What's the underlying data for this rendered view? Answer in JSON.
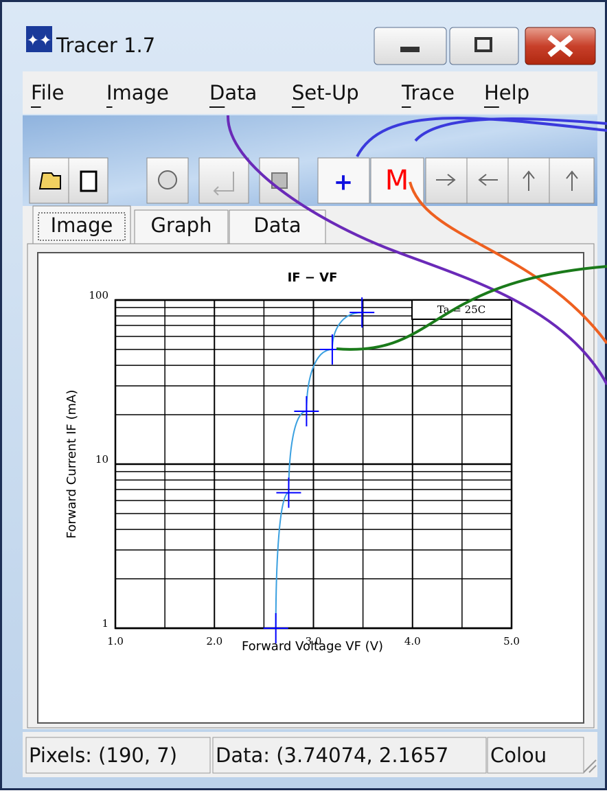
{
  "window": {
    "title": "Tracer 1.7"
  },
  "menu": [
    "File",
    "Image",
    "Data",
    "Set-Up",
    "Trace",
    "Help"
  ],
  "toolbar": {
    "point_tool": "+",
    "measure_tool": "M"
  },
  "tabs": [
    "Image",
    "Graph",
    "Data"
  ],
  "graph": {
    "title": "IF − VF",
    "x_label": "Forward Voltage  VF  (V)",
    "y_label": "Forward Current  IF  (mA)",
    "legend": "Ta = 25C",
    "xlim": [
      1,
      5
    ],
    "ylim": [
      1,
      100
    ],
    "log_y": true,
    "xticks": [
      {
        "value": 1,
        "label": "1.0"
      },
      {
        "value": 2,
        "label": "2.0"
      },
      {
        "value": 3,
        "label": "3.0"
      },
      {
        "value": 4,
        "label": "4.0"
      },
      {
        "value": 5,
        "label": "5.0"
      }
    ],
    "yticks": [
      1,
      10,
      100
    ],
    "points": {
      "x": [
        2.62,
        2.75,
        2.93,
        3.19,
        3.49
      ],
      "y": [
        1,
        6.7,
        21,
        50,
        84
      ]
    },
    "marker_color": "#0000ff",
    "curve_color": "#3aa0e0"
  },
  "status_bar": [
    "Pixels: (190, 7)",
    "Data: (3.74074, 2.1657",
    "Colou"
  ]
}
